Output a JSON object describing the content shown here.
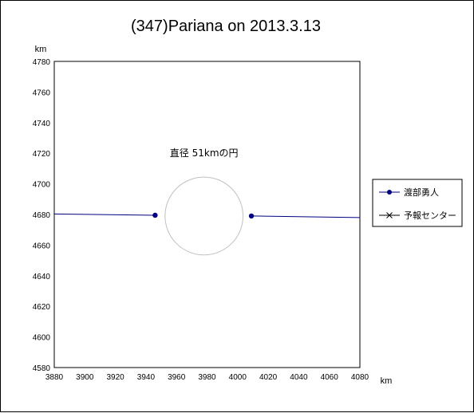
{
  "chart_data": {
    "type": "scatter",
    "title": "(347)Pariana on 2013.3.13",
    "xlabel": "km",
    "ylabel": "km",
    "xlim": [
      3880,
      4080
    ],
    "ylim": [
      4580,
      4780
    ],
    "x_ticks": [
      3880,
      3900,
      3920,
      3940,
      3960,
      3980,
      4000,
      4020,
      4040,
      4060,
      4080
    ],
    "y_ticks": [
      4580,
      4600,
      4620,
      4640,
      4660,
      4680,
      4700,
      4720,
      4740,
      4760,
      4780
    ],
    "grid": false,
    "legend_position": "right",
    "series": [
      {
        "name": "渡部勇人",
        "color": "#000080",
        "segments": [
          {
            "x": [
              3880,
              3946
            ],
            "y": [
              4680.3,
              4679.5
            ],
            "end_marker": [
              3946,
              4679.5
            ]
          },
          {
            "x": [
              4009,
              4080
            ],
            "y": [
              4679.0,
              4678.0
            ],
            "start_marker": [
              4009,
              4679.0
            ]
          }
        ]
      },
      {
        "name": "予報センター",
        "color": "#000000",
        "segments": []
      }
    ],
    "circle": {
      "center": [
        3978,
        4679
      ],
      "diameter": 51,
      "color": "#c0c0c0"
    },
    "annotations": [
      {
        "text": "直径 51kmの円",
        "x": 3978,
        "y": 4720
      }
    ]
  }
}
